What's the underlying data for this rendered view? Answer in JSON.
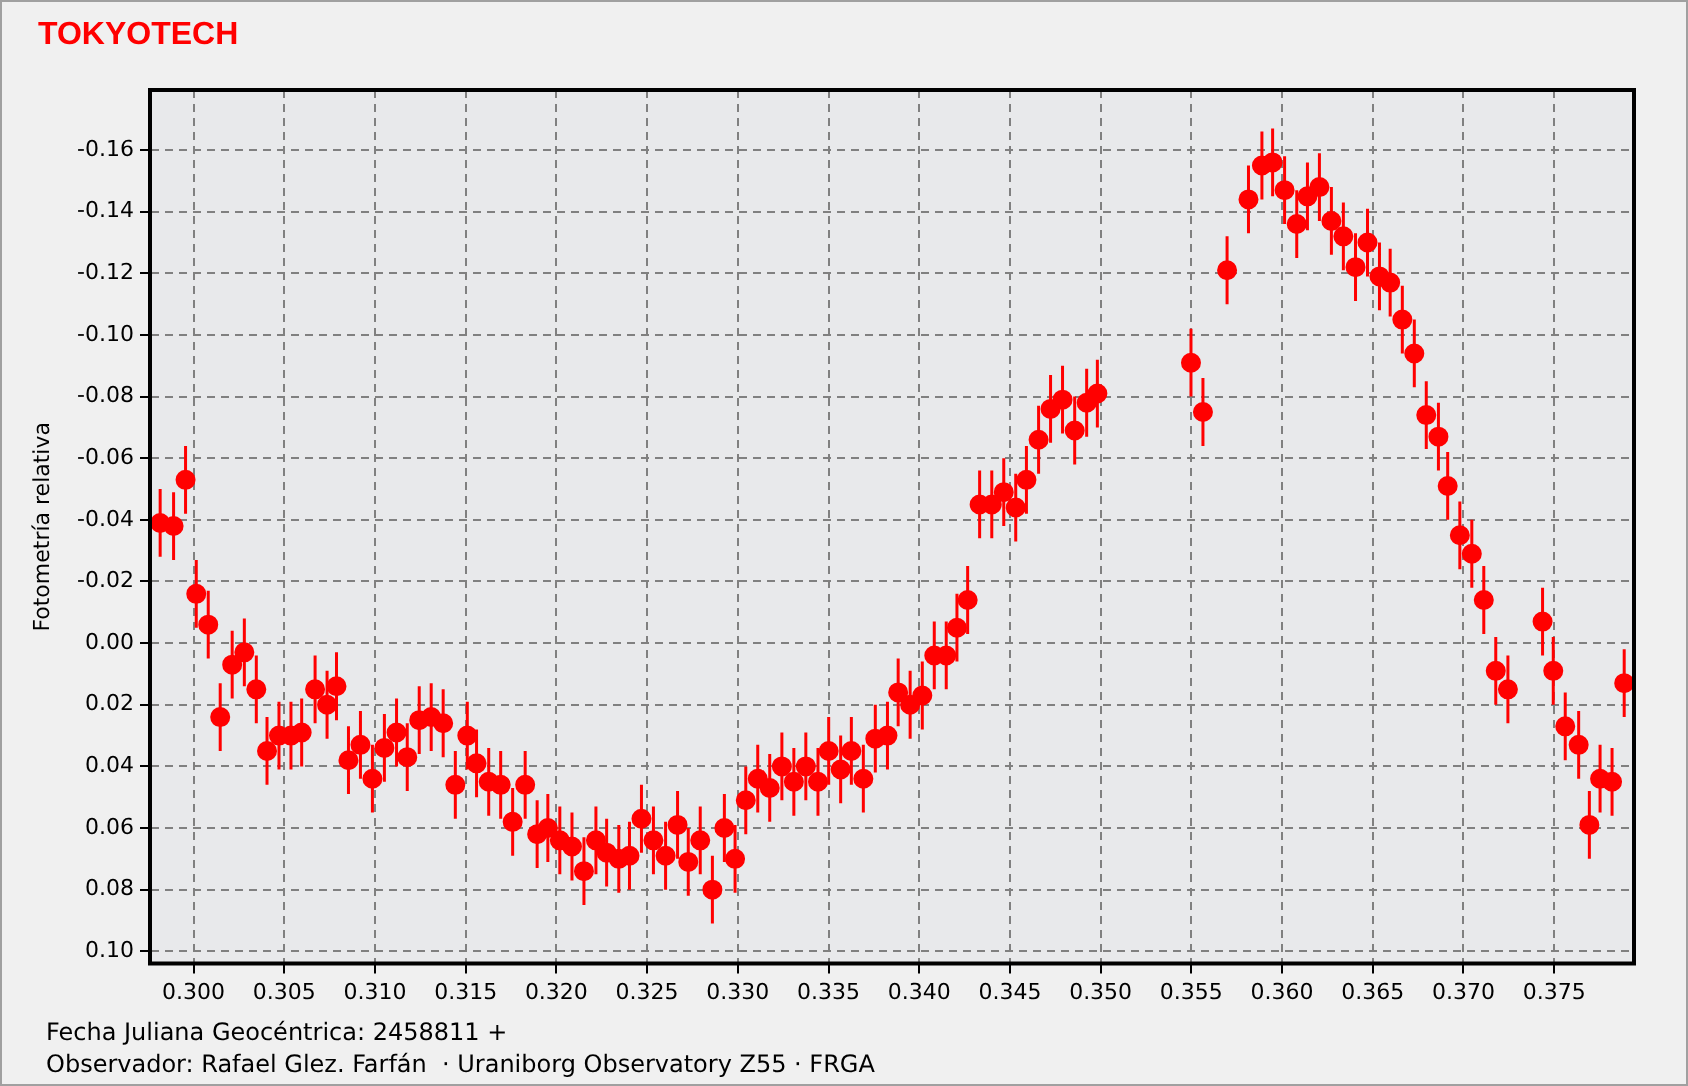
{
  "chart_data": {
    "type": "scatter",
    "title": "TOKYOTECH",
    "ylabel": "Fotometría relativa",
    "annotations": [
      "Fecha Juliana Geocéntrica: 2458811 +",
      "Observador: Rafael Glez. Farfán  · Uraniborg Observatory Z55 · FRGA"
    ],
    "xlim": [
      0.2976,
      0.3794
    ],
    "ylim": [
      0.104,
      -0.1795
    ],
    "xticks": [
      {
        "value": 0.3,
        "label": "0.300"
      },
      {
        "value": 0.305,
        "label": "0.305"
      },
      {
        "value": 0.31,
        "label": "0.310"
      },
      {
        "value": 0.315,
        "label": "0.315"
      },
      {
        "value": 0.32,
        "label": "0.320"
      },
      {
        "value": 0.325,
        "label": "0.325"
      },
      {
        "value": 0.33,
        "label": "0.330"
      },
      {
        "value": 0.335,
        "label": "0.335"
      },
      {
        "value": 0.34,
        "label": "0.340"
      },
      {
        "value": 0.345,
        "label": "0.345"
      },
      {
        "value": 0.35,
        "label": "0.350"
      },
      {
        "value": 0.355,
        "label": "0.355"
      },
      {
        "value": 0.36,
        "label": "0.360"
      },
      {
        "value": 0.365,
        "label": "0.365"
      },
      {
        "value": 0.37,
        "label": "0.370"
      },
      {
        "value": 0.375,
        "label": "0.375"
      }
    ],
    "yticks": [
      {
        "value": -0.16,
        "label": "-0.16"
      },
      {
        "value": -0.14,
        "label": "-0.14"
      },
      {
        "value": -0.12,
        "label": "-0.12"
      },
      {
        "value": -0.1,
        "label": "-0.10"
      },
      {
        "value": -0.08,
        "label": "-0.08"
      },
      {
        "value": -0.06,
        "label": "-0.06"
      },
      {
        "value": -0.04,
        "label": "-0.04"
      },
      {
        "value": -0.02,
        "label": "-0.02"
      },
      {
        "value": 0,
        "label": "0.00"
      },
      {
        "value": 0.02,
        "label": "0.02"
      },
      {
        "value": 0.04,
        "label": "0.04"
      },
      {
        "value": 0.06,
        "label": "0.06"
      },
      {
        "value": 0.08,
        "label": "0.08"
      },
      {
        "value": 0.1,
        "label": "0.10"
      }
    ],
    "grid": true,
    "marker": "circle",
    "series": [
      {
        "color": "#ff0000",
        "x": [
          0.29816,
          0.2989,
          0.29956,
          0.30015,
          0.30081,
          0.30147,
          0.30213,
          0.3028,
          0.30346,
          0.30405,
          0.30471,
          0.30537,
          0.30596,
          0.3067,
          0.30736,
          0.30788,
          0.30854,
          0.3092,
          0.30986,
          0.31052,
          0.31119,
          0.31178,
          0.31244,
          0.3131,
          0.31376,
          0.31443,
          0.31509,
          0.3156,
          0.31627,
          0.31693,
          0.31759,
          0.31828,
          0.31894,
          0.31953,
          0.32019,
          0.32086,
          0.32152,
          0.32218,
          0.32277,
          0.32344,
          0.32403,
          0.32469,
          0.32535,
          0.32602,
          0.32668,
          0.32727,
          0.32793,
          0.3286,
          0.32926,
          0.32985,
          0.33044,
          0.3311,
          0.33176,
          0.33243,
          0.33309,
          0.33375,
          0.33442,
          0.33501,
          0.33567,
          0.33626,
          0.33692,
          0.33758,
          0.33825,
          0.33884,
          0.3395,
          0.34017,
          0.34083,
          0.34149,
          0.34208,
          0.34267,
          0.34333,
          0.344,
          0.34466,
          0.34532,
          0.34591,
          0.34658,
          0.34724,
          0.3479,
          0.34857,
          0.34923,
          0.34982,
          0.35498,
          0.35564,
          0.35697,
          0.35815,
          0.35889,
          0.35948,
          0.36014,
          0.36081,
          0.3614,
          0.36206,
          0.36272,
          0.36338,
          0.36405,
          0.36471,
          0.36537,
          0.36596,
          0.36663,
          0.36729,
          0.36795,
          0.36862,
          0.36913,
          0.3698,
          0.37046,
          0.37112,
          0.37178,
          0.37245,
          0.37436,
          0.37495,
          0.37561,
          0.37635,
          0.37694,
          0.37753,
          0.37819,
          0.37886
        ],
        "values": [
          -0.039,
          -0.038,
          -0.053,
          -0.016,
          -0.006,
          0.024,
          0.007,
          0.003,
          0.015,
          0.035,
          0.03,
          0.03,
          0.029,
          0.015,
          0.02,
          0.014,
          0.038,
          0.033,
          0.044,
          0.034,
          0.029,
          0.037,
          0.025,
          0.024,
          0.026,
          0.046,
          0.03,
          0.039,
          0.045,
          0.046,
          0.058,
          0.046,
          0.062,
          0.06,
          0.064,
          0.066,
          0.074,
          0.064,
          0.068,
          0.07,
          0.069,
          0.057,
          0.064,
          0.069,
          0.059,
          0.071,
          0.064,
          0.08,
          0.06,
          0.07,
          0.051,
          0.044,
          0.047,
          0.04,
          0.045,
          0.04,
          0.045,
          0.035,
          0.041,
          0.035,
          0.044,
          0.031,
          0.03,
          0.016,
          0.02,
          0.017,
          0.004,
          0.004,
          -0.005,
          -0.014,
          -0.045,
          -0.045,
          -0.049,
          -0.044,
          -0.053,
          -0.066,
          -0.076,
          -0.079,
          -0.069,
          -0.078,
          -0.081,
          -0.091,
          -0.075,
          -0.121,
          -0.144,
          -0.155,
          -0.156,
          -0.147,
          -0.136,
          -0.145,
          -0.148,
          -0.137,
          -0.132,
          -0.122,
          -0.13,
          -0.119,
          -0.117,
          -0.105,
          -0.094,
          -0.074,
          -0.067,
          -0.051,
          -0.035,
          -0.029,
          -0.014,
          0.009,
          0.015,
          -0.007,
          0.009,
          0.027,
          0.033,
          0.059,
          0.044,
          0.045,
          0.013
        ],
        "errors": [
          0.011,
          0.011,
          0.011,
          0.011,
          0.011,
          0.011,
          0.011,
          0.011,
          0.011,
          0.011,
          0.011,
          0.011,
          0.011,
          0.011,
          0.011,
          0.011,
          0.011,
          0.011,
          0.011,
          0.011,
          0.011,
          0.011,
          0.011,
          0.011,
          0.011,
          0.011,
          0.011,
          0.011,
          0.011,
          0.011,
          0.011,
          0.011,
          0.011,
          0.011,
          0.011,
          0.011,
          0.011,
          0.011,
          0.011,
          0.011,
          0.011,
          0.011,
          0.011,
          0.011,
          0.011,
          0.011,
          0.011,
          0.011,
          0.011,
          0.011,
          0.011,
          0.011,
          0.011,
          0.011,
          0.011,
          0.011,
          0.011,
          0.011,
          0.011,
          0.011,
          0.011,
          0.011,
          0.011,
          0.011,
          0.011,
          0.011,
          0.011,
          0.011,
          0.011,
          0.011,
          0.011,
          0.011,
          0.011,
          0.011,
          0.011,
          0.011,
          0.011,
          0.011,
          0.011,
          0.011,
          0.011,
          0.011,
          0.011,
          0.011,
          0.011,
          0.011,
          0.011,
          0.011,
          0.011,
          0.011,
          0.011,
          0.011,
          0.011,
          0.011,
          0.011,
          0.011,
          0.011,
          0.011,
          0.011,
          0.011,
          0.011,
          0.011,
          0.011,
          0.011,
          0.011,
          0.011,
          0.011,
          0.011,
          0.011,
          0.011,
          0.011,
          0.011,
          0.011,
          0.011,
          0.011
        ]
      }
    ]
  }
}
